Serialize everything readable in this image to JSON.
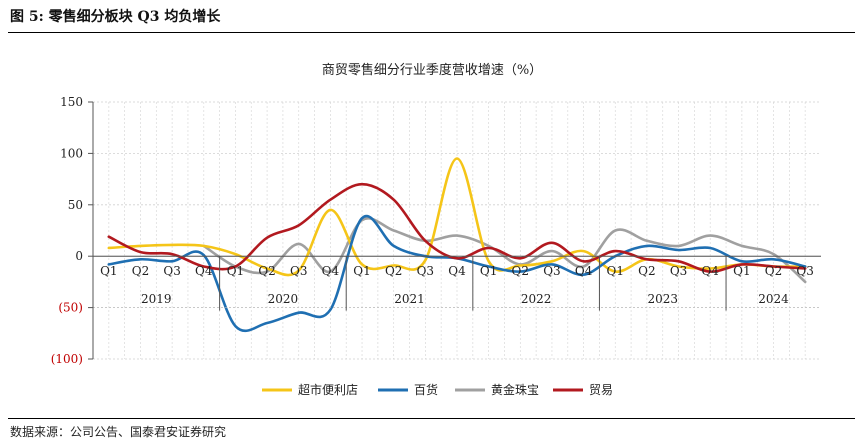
{
  "figure": {
    "label": "图 5:  零售细分板块 Q3 均负增长",
    "source": "数据来源：公司公告、国泰君安证券研究"
  },
  "chart_data": {
    "type": "line",
    "title": "商贸零售细分行业季度营收增速（%）",
    "xlabel": "",
    "ylabel": "",
    "ylim": [
      -100,
      150
    ],
    "yticks": [
      150,
      100,
      50,
      0,
      -50,
      -100
    ],
    "ytick_labels": [
      "150",
      "100",
      "50",
      "0",
      "(50)",
      "(100)"
    ],
    "grid": true,
    "legend_position": "bottom",
    "quarter_labels": [
      "Q1",
      "Q2",
      "Q3",
      "Q4",
      "Q1",
      "Q2",
      "Q3",
      "Q4",
      "Q1",
      "Q2",
      "Q3",
      "Q4",
      "Q1",
      "Q2",
      "Q3",
      "Q4",
      "Q1",
      "Q2",
      "Q3",
      "Q4",
      "Q1",
      "Q2",
      "Q3"
    ],
    "year_labels": [
      "2019",
      "2020",
      "2021",
      "2022",
      "2023",
      "2024"
    ],
    "year_spans": [
      4,
      4,
      4,
      4,
      4,
      3
    ],
    "series": [
      {
        "name": "超市便利店",
        "color": "#F5C518",
        "values": [
          8,
          10,
          11,
          10,
          2,
          -12,
          -14,
          45,
          -8,
          -9,
          -4,
          95,
          -5,
          -9,
          -5,
          5,
          -15,
          -3,
          -10,
          -12,
          -8,
          -10,
          -10
        ]
      },
      {
        "name": "百货",
        "color": "#1F6FB2",
        "values": [
          -8,
          -3,
          -5,
          1,
          -68,
          -65,
          -55,
          -52,
          37,
          10,
          0,
          -2,
          -10,
          -15,
          -8,
          -18,
          0,
          10,
          6,
          8,
          -5,
          -3,
          -10
        ]
      },
      {
        "name": "黄金珠宝",
        "color": "#A0A0A0",
        "values": [
          null,
          null,
          null,
          10,
          -10,
          -15,
          12,
          -15,
          35,
          25,
          15,
          20,
          10,
          -8,
          5,
          -10,
          25,
          15,
          10,
          20,
          10,
          2,
          -25
        ]
      },
      {
        "name": "贸易",
        "color": "#B2191F",
        "values": [
          19,
          4,
          2,
          -10,
          -10,
          18,
          30,
          55,
          70,
          55,
          15,
          -2,
          8,
          -2,
          13,
          -5,
          5,
          -3,
          -5,
          -15,
          -8,
          -10,
          -12
        ]
      }
    ]
  }
}
